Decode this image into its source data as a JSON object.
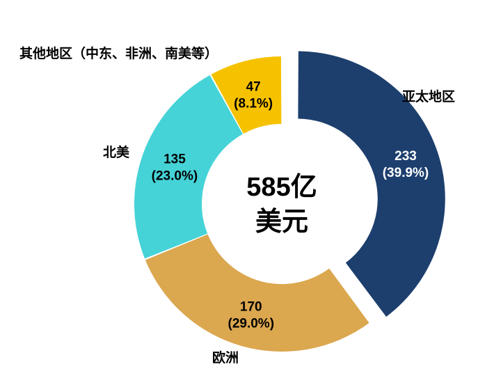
{
  "chart_data": {
    "type": "pie",
    "center_label": {
      "line1": "585亿",
      "line2": "美元"
    },
    "slices": [
      {
        "name": "亚太地区",
        "value": 233,
        "value_label": "233",
        "percent_label": "(39.9%)",
        "color": "#1d3f6e",
        "label_color": "#ffffff",
        "exploded": true
      },
      {
        "name": "欧洲",
        "value": 170,
        "value_label": "170",
        "percent_label": "(29.0%)",
        "color": "#dba74f",
        "label_color": "#000000",
        "exploded": false
      },
      {
        "name": "北美",
        "value": 135,
        "value_label": "135",
        "percent_label": "(23.0%)",
        "color": "#45d3d7",
        "label_color": "#000000",
        "exploded": false
      },
      {
        "name": "其他地区（中东、非洲、南美等）",
        "value": 47,
        "value_label": "47",
        "percent_label": "(8.1%)",
        "color": "#f6c200",
        "label_color": "#000000",
        "exploded": false
      }
    ]
  }
}
